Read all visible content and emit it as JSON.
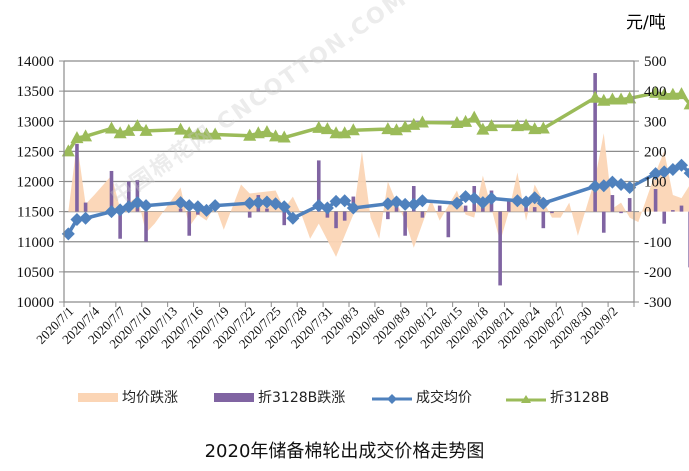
{
  "chart_data": {
    "type": "line",
    "title": "2020年储备棉轮出成交价格走势图",
    "unit_label": "元/吨",
    "left_axis": {
      "min": 10000,
      "max": 14000,
      "step": 500,
      "ticks": [
        "14000",
        "13500",
        "13000",
        "12500",
        "12000",
        "11500",
        "11000",
        "10500",
        "10000"
      ]
    },
    "right_axis": {
      "min": -300,
      "max": 500,
      "step": 100,
      "ticks": [
        "500",
        "400",
        "300",
        "200",
        "100",
        "0",
        "-100",
        "-200",
        "-300"
      ]
    },
    "x_tick_labels": [
      "2020/7/1",
      "2020/7/4",
      "2020/7/7",
      "2020/7/10",
      "2020/7/13",
      "2020/7/16",
      "2020/7/19",
      "2020/7/22",
      "2020/7/25",
      "2020/7/28",
      "2020/7/31",
      "2020/8/3",
      "2020/8/6",
      "2020/8/9",
      "2020/8/12",
      "2020/8/15",
      "2020/8/18",
      "2020/8/21",
      "2020/8/24",
      "2020/8/27",
      "2020/8/30",
      "2020/9/2"
    ],
    "grid": true,
    "legend_position": "bottom",
    "series": [
      {
        "name": "均价跌涨",
        "type": "area",
        "axis": "right",
        "color": "#FBD5B5",
        "points": [
          [
            0,
            0
          ],
          [
            1,
            230
          ],
          [
            2,
            25
          ],
          [
            3,
            55
          ],
          [
            5,
            120
          ],
          [
            6,
            10
          ],
          [
            7,
            30
          ],
          [
            8,
            50
          ],
          [
            9,
            -70
          ],
          [
            10,
            -40
          ],
          [
            13,
            80
          ],
          [
            14,
            -50
          ],
          [
            15,
            -10
          ],
          [
            16,
            -30
          ],
          [
            17,
            20
          ],
          [
            18,
            -60
          ],
          [
            20,
            90
          ],
          [
            21,
            60
          ],
          [
            24,
            70
          ],
          [
            25,
            10
          ],
          [
            26,
            50
          ],
          [
            27,
            -10
          ],
          [
            28,
            -90
          ],
          [
            29,
            -40
          ],
          [
            31,
            -150
          ],
          [
            33,
            -10
          ],
          [
            34,
            200
          ],
          [
            35,
            -20
          ],
          [
            36,
            -90
          ],
          [
            37,
            100
          ],
          [
            38,
            30
          ],
          [
            39,
            -30
          ],
          [
            40,
            -120
          ],
          [
            42,
            40
          ],
          [
            43,
            -30
          ],
          [
            44,
            20
          ],
          [
            45,
            70
          ],
          [
            46,
            -10
          ],
          [
            47,
            -20
          ],
          [
            48,
            120
          ],
          [
            49,
            10
          ],
          [
            50,
            -100
          ],
          [
            51,
            0
          ],
          [
            52,
            130
          ],
          [
            53,
            -30
          ],
          [
            54,
            90
          ],
          [
            56,
            -20
          ],
          [
            57,
            -20
          ],
          [
            58,
            30
          ],
          [
            59,
            -80
          ],
          [
            61,
            110
          ],
          [
            62,
            260
          ],
          [
            63,
            10
          ],
          [
            64,
            30
          ],
          [
            65,
            -20
          ],
          [
            66,
            -35
          ],
          [
            68,
            130
          ],
          [
            69,
            200
          ],
          [
            70,
            55
          ],
          [
            71,
            45
          ],
          [
            72,
            90
          ],
          [
            73,
            -210
          ]
        ]
      },
      {
        "name": "折3128B跌涨",
        "type": "bar",
        "axis": "right",
        "color": "#8064A2",
        "points": [
          [
            1,
            225
          ],
          [
            2,
            30
          ],
          [
            5,
            135
          ],
          [
            6,
            -90
          ],
          [
            7,
            100
          ],
          [
            8,
            105
          ],
          [
            9,
            -100
          ],
          [
            13,
            10
          ],
          [
            14,
            -80
          ],
          [
            15,
            -10
          ],
          [
            21,
            -20
          ],
          [
            22,
            55
          ],
          [
            23,
            10
          ],
          [
            25,
            -45
          ],
          [
            29,
            170
          ],
          [
            30,
            -20
          ],
          [
            31,
            -55
          ],
          [
            32,
            -30
          ],
          [
            33,
            50
          ],
          [
            37,
            -25
          ],
          [
            38,
            25
          ],
          [
            39,
            -80
          ],
          [
            40,
            85
          ],
          [
            41,
            -20
          ],
          [
            43,
            20
          ],
          [
            44,
            -85
          ],
          [
            46,
            20
          ],
          [
            47,
            85
          ],
          [
            48,
            30
          ],
          [
            49,
            70
          ],
          [
            50,
            -245
          ],
          [
            51,
            40
          ],
          [
            53,
            20
          ],
          [
            54,
            15
          ],
          [
            55,
            -55
          ],
          [
            56,
            -5
          ],
          [
            61,
            460
          ],
          [
            62,
            -70
          ],
          [
            63,
            55
          ],
          [
            64,
            -5
          ],
          [
            65,
            45
          ],
          [
            68,
            75
          ],
          [
            69,
            -40
          ],
          [
            70,
            5
          ],
          [
            71,
            20
          ],
          [
            72,
            -185
          ]
        ]
      },
      {
        "name": "成交均价",
        "type": "line",
        "axis": "left",
        "color": "#4F81BD",
        "marker": "diamond",
        "points": [
          [
            0,
            11130
          ],
          [
            1,
            11370
          ],
          [
            2,
            11390
          ],
          [
            5,
            11500
          ],
          [
            6,
            11530
          ],
          [
            7,
            11580
          ],
          [
            8,
            11650
          ],
          [
            9,
            11600
          ],
          [
            13,
            11650
          ],
          [
            14,
            11600
          ],
          [
            15,
            11580
          ],
          [
            16,
            11520
          ],
          [
            17,
            11600
          ],
          [
            21,
            11640
          ],
          [
            22,
            11650
          ],
          [
            23,
            11660
          ],
          [
            24,
            11630
          ],
          [
            25,
            11580
          ],
          [
            26,
            11390
          ],
          [
            29,
            11600
          ],
          [
            30,
            11560
          ],
          [
            31,
            11670
          ],
          [
            32,
            11680
          ],
          [
            33,
            11560
          ],
          [
            37,
            11630
          ],
          [
            38,
            11660
          ],
          [
            39,
            11620
          ],
          [
            40,
            11620
          ],
          [
            41,
            11680
          ],
          [
            45,
            11640
          ],
          [
            46,
            11750
          ],
          [
            47,
            11720
          ],
          [
            48,
            11650
          ],
          [
            49,
            11720
          ],
          [
            52,
            11680
          ],
          [
            53,
            11660
          ],
          [
            54,
            11730
          ],
          [
            55,
            11640
          ],
          [
            61,
            11920
          ],
          [
            62,
            11930
          ],
          [
            63,
            11990
          ],
          [
            64,
            11950
          ],
          [
            65,
            11900
          ],
          [
            68,
            12130
          ],
          [
            69,
            12160
          ],
          [
            70,
            12200
          ],
          [
            71,
            12270
          ],
          [
            72,
            12140
          ]
        ]
      },
      {
        "name": "折3128B",
        "type": "line",
        "axis": "left",
        "color": "#9BBB59",
        "marker": "triangle",
        "points": [
          [
            0,
            12500
          ],
          [
            1,
            12720
          ],
          [
            2,
            12750
          ],
          [
            5,
            12880
          ],
          [
            6,
            12800
          ],
          [
            7,
            12840
          ],
          [
            8,
            12920
          ],
          [
            9,
            12840
          ],
          [
            13,
            12860
          ],
          [
            14,
            12800
          ],
          [
            15,
            12780
          ],
          [
            16,
            12780
          ],
          [
            17,
            12780
          ],
          [
            21,
            12760
          ],
          [
            22,
            12800
          ],
          [
            23,
            12820
          ],
          [
            24,
            12750
          ],
          [
            25,
            12730
          ],
          [
            29,
            12890
          ],
          [
            30,
            12870
          ],
          [
            31,
            12800
          ],
          [
            32,
            12800
          ],
          [
            33,
            12850
          ],
          [
            37,
            12870
          ],
          [
            38,
            12850
          ],
          [
            39,
            12900
          ],
          [
            40,
            12940
          ],
          [
            41,
            12980
          ],
          [
            45,
            12970
          ],
          [
            46,
            12990
          ],
          [
            47,
            13060
          ],
          [
            48,
            12860
          ],
          [
            49,
            12920
          ],
          [
            52,
            12920
          ],
          [
            53,
            12930
          ],
          [
            54,
            12870
          ],
          [
            55,
            12880
          ],
          [
            61,
            13390
          ],
          [
            62,
            13340
          ],
          [
            63,
            13360
          ],
          [
            64,
            13360
          ],
          [
            65,
            13380
          ],
          [
            68,
            13470
          ],
          [
            69,
            13440
          ],
          [
            70,
            13440
          ],
          [
            71,
            13450
          ],
          [
            72,
            13280
          ]
        ]
      }
    ]
  },
  "legend": {
    "items": [
      {
        "label": "均价跌涨"
      },
      {
        "label": "折3128B跌涨"
      },
      {
        "label": "成交均价"
      },
      {
        "label": "折3128B"
      }
    ]
  },
  "watermark": "中国棉花网 CNCOTTON.COM"
}
